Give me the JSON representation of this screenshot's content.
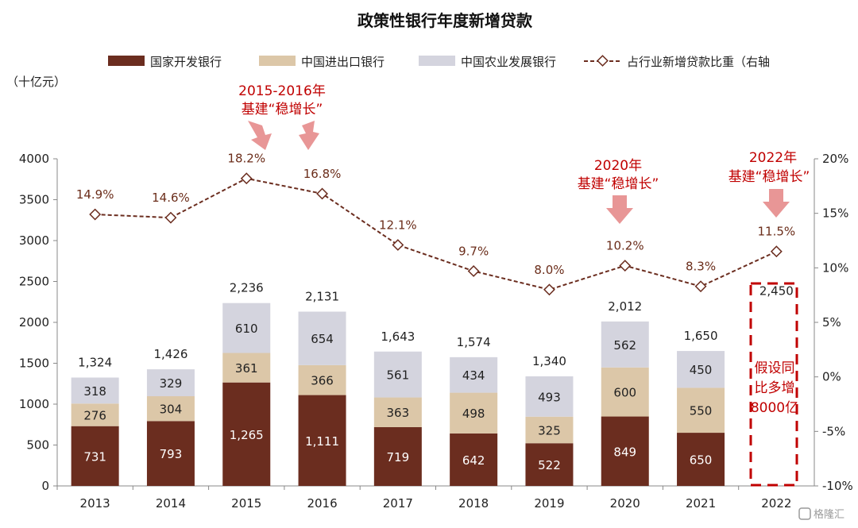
{
  "chart_data": {
    "type": "bar",
    "title": "政策性银行年度新增贷款",
    "unit_left": "（十亿元）",
    "categories": [
      "2013",
      "2014",
      "2015",
      "2016",
      "2017",
      "2018",
      "2019",
      "2020",
      "2021",
      "2022"
    ],
    "series": [
      {
        "name": "国家开发银行",
        "color": "#6b2d1f",
        "values": [
          731,
          793,
          1265,
          1111,
          719,
          642,
          522,
          849,
          650,
          null
        ],
        "labels": [
          "731",
          "793",
          "1,265",
          "1,111",
          "719",
          "642",
          "522",
          "849",
          "650",
          ""
        ]
      },
      {
        "name": "中国进出口银行",
        "color": "#dcc7a8",
        "values": [
          276,
          304,
          361,
          366,
          363,
          498,
          325,
          600,
          550,
          null
        ],
        "labels": [
          "276",
          "304",
          "361",
          "366",
          "363",
          "498",
          "325",
          "600",
          "550",
          ""
        ]
      },
      {
        "name": "中国农业发展银行",
        "color": "#d4d4de",
        "values": [
          318,
          329,
          610,
          654,
          561,
          434,
          493,
          562,
          450,
          null
        ],
        "labels": [
          "318",
          "329",
          "610",
          "654",
          "561",
          "434",
          "493",
          "562",
          "450",
          ""
        ]
      }
    ],
    "totals": [
      1324,
      1426,
      2236,
      2131,
      1643,
      1574,
      1340,
      2012,
      1650,
      2450
    ],
    "total_labels": [
      "1,324",
      "1,426",
      "2,236",
      "2,131",
      "1,643",
      "1,574",
      "1,340",
      "2,012",
      "1,650",
      "2,450"
    ],
    "line_series": {
      "name": "占行业新增贷款比重（右轴",
      "color": "#6b2d1f",
      "values": [
        14.9,
        14.6,
        18.2,
        16.8,
        12.1,
        9.7,
        8.0,
        10.2,
        8.3,
        11.5
      ],
      "labels": [
        "14.9%",
        "14.6%",
        "18.2%",
        "16.8%",
        "12.1%",
        "9.7%",
        "8.0%",
        "10.2%",
        "8.3%",
        "11.5%"
      ]
    },
    "ylim": [
      0,
      4000
    ],
    "y_ticks": [
      "0",
      "500",
      "1000",
      "1500",
      "2000",
      "2500",
      "3000",
      "3500",
      "4000"
    ],
    "y2lim": [
      -10,
      20
    ],
    "y2_ticks": [
      "-10%",
      "-5%",
      "0%",
      "5%",
      "10%",
      "15%",
      "20%"
    ],
    "assumed_2022_label": [
      "假设同",
      "比多增",
      "8000亿"
    ],
    "annotations": [
      {
        "lines": [
          "2015-2016年",
          "基建“稳增长”"
        ],
        "color": "#c00000"
      },
      {
        "lines": [
          "2020年",
          "基建“稳增长”"
        ],
        "color": "#c00000"
      },
      {
        "lines": [
          "2022年",
          "基建“稳增长”"
        ],
        "color": "#c00000"
      }
    ],
    "legend_position": "top",
    "grid": false
  },
  "watermark": "格隆汇"
}
